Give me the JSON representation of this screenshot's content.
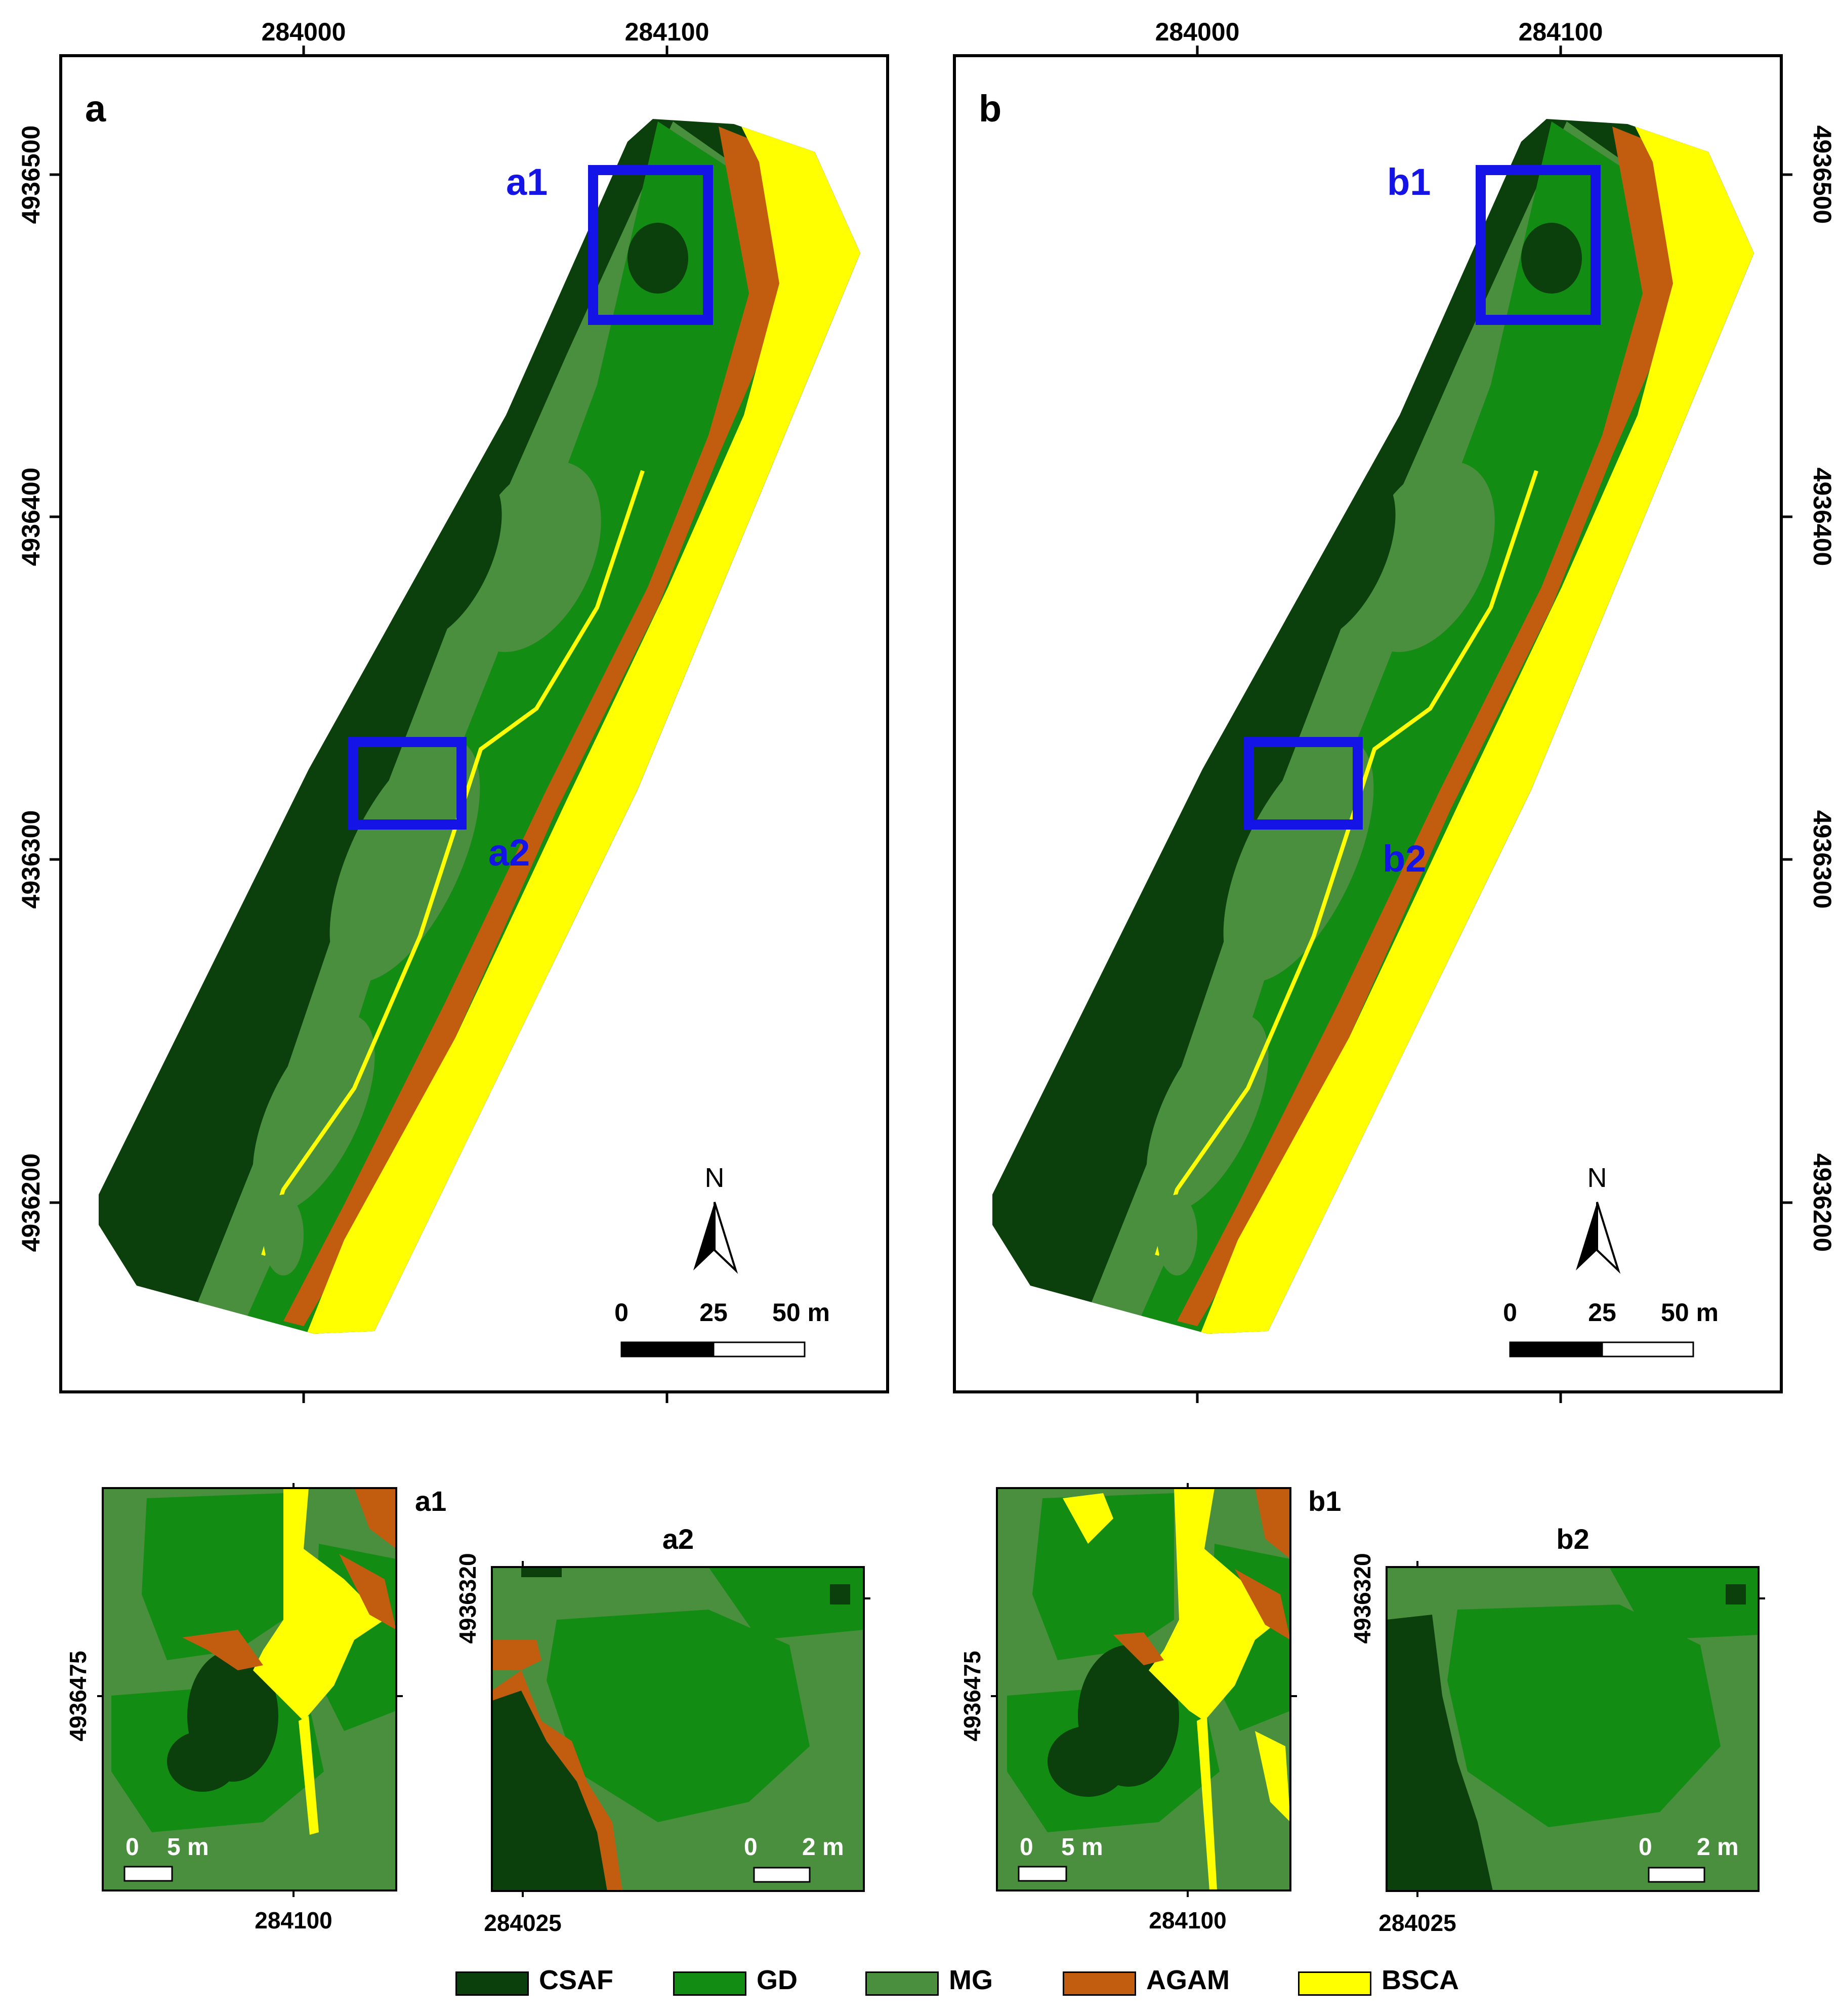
{
  "colors": {
    "CSAF": "#0b3f0b",
    "GD": "#138c13",
    "MG": "#4a8f3e",
    "AGAM": "#c25d0f",
    "BSCA": "#ffff00",
    "frame_blue": "#1414e6"
  },
  "panel_a": {
    "letter": "a",
    "top_ticks": [
      "284000",
      "284100"
    ],
    "bottom_ticks": [
      "284000",
      "284100"
    ],
    "left_ticks": [
      "4936500",
      "4936400",
      "4936300",
      "4936200"
    ],
    "inset_labels": [
      "a1",
      "a2"
    ],
    "north": "N",
    "scale_labels": [
      "0",
      "25",
      "50 m"
    ]
  },
  "panel_b": {
    "letter": "b",
    "top_ticks": [
      "284000",
      "284100"
    ],
    "bottom_ticks": [
      "284000",
      "284100"
    ],
    "right_ticks": [
      "4936500",
      "4936400",
      "4936300",
      "4936200"
    ],
    "inset_labels": [
      "b1",
      "b2"
    ],
    "north": "N",
    "scale_labels": [
      "0",
      "25",
      "50 m"
    ]
  },
  "inset_a1": {
    "title": "a1",
    "y_tick": "4936475",
    "x_tick": "284100",
    "scale": [
      "0",
      "5 m"
    ]
  },
  "inset_a2": {
    "title": "a2",
    "y_tick": "4936320",
    "x_tick": "284025",
    "scale": [
      "0",
      "2 m"
    ]
  },
  "inset_b1": {
    "title": "b1",
    "y_tick": "4936475",
    "x_tick": "284100",
    "scale": [
      "0",
      "5 m"
    ]
  },
  "inset_b2": {
    "title": "b2",
    "y_tick": "4936320",
    "x_tick": "284025",
    "scale": [
      "0",
      "2 m"
    ]
  },
  "legend": [
    {
      "label": "CSAF",
      "color": "#0b3f0b"
    },
    {
      "label": "GD",
      "color": "#138c13"
    },
    {
      "label": "MG",
      "color": "#4a8f3e"
    },
    {
      "label": "AGAM",
      "color": "#c25d0f"
    },
    {
      "label": "BSCA",
      "color": "#ffff00"
    }
  ]
}
